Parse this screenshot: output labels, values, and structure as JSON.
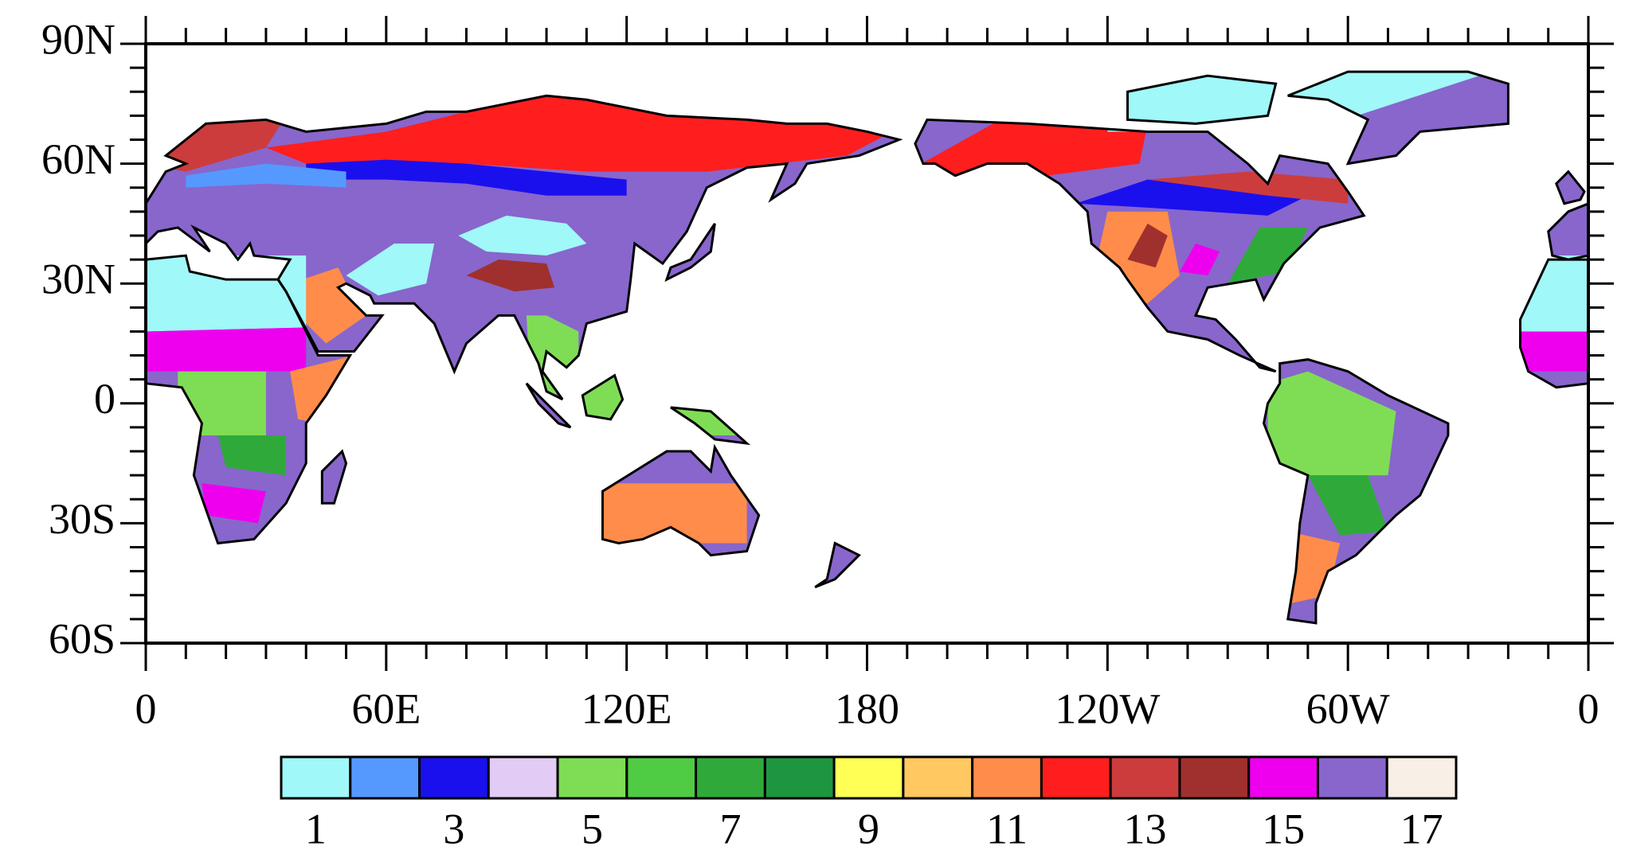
{
  "map": {
    "lat_ticks": [
      {
        "value": 90,
        "label": "90N"
      },
      {
        "value": 60,
        "label": "60N"
      },
      {
        "value": 30,
        "label": "30N"
      },
      0,
      {
        "value": -30,
        "label": "30S"
      },
      {
        "value": -60,
        "label": "60S"
      }
    ],
    "lon_ticks": [
      0,
      {
        "value": 60,
        "label": "60E"
      },
      {
        "value": 120,
        "label": "120E"
      },
      180,
      {
        "value": 240,
        "label": "120W"
      },
      {
        "value": 300,
        "label": "60W"
      },
      {
        "value": 360,
        "label": "0"
      }
    ],
    "lat_minor_step": 6,
    "lon_minor_step": 10
  },
  "colorbar": {
    "classes": [
      {
        "value": 1,
        "color": "#a0f8f8"
      },
      {
        "value": 2,
        "color": "#5599ff"
      },
      {
        "value": 3,
        "color": "#1a10ee"
      },
      {
        "value": 4,
        "color": "#e2cbf5"
      },
      {
        "value": 5,
        "color": "#7fdd55"
      },
      {
        "value": 6,
        "color": "#4fcc44"
      },
      {
        "value": 7,
        "color": "#2faa3a"
      },
      {
        "value": 8,
        "color": "#1e9640"
      },
      {
        "value": 9,
        "color": "#ffff55"
      },
      {
        "value": 10,
        "color": "#ffc860"
      },
      {
        "value": 11,
        "color": "#ff8c4a"
      },
      {
        "value": 12,
        "color": "#ff1e1e"
      },
      {
        "value": 13,
        "color": "#cc3c3c"
      },
      {
        "value": 14,
        "color": "#a0302e"
      },
      {
        "value": 15,
        "color": "#ee00ee"
      },
      {
        "value": 16,
        "color": "#8866cc"
      },
      {
        "value": 17,
        "color": "#f8efe6"
      }
    ]
  }
}
